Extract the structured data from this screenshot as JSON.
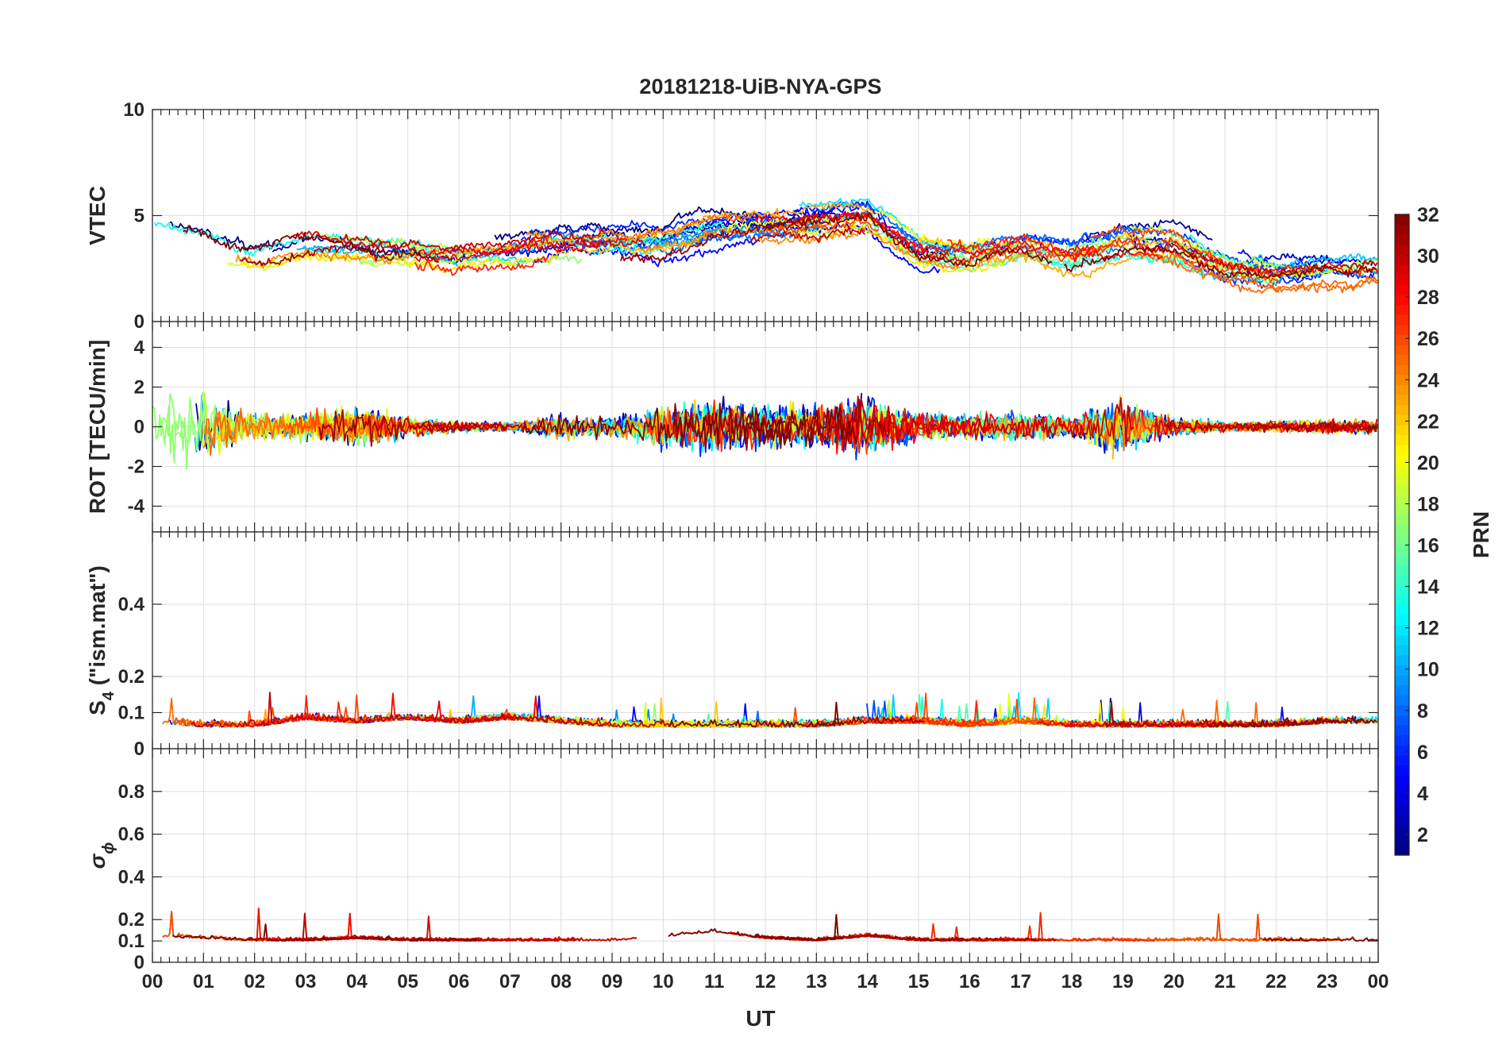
{
  "chart_data": {
    "type": "line",
    "title": "20181218-UiB-NYA-GPS",
    "xlabel": "UT",
    "x_ticks": [
      "00",
      "01",
      "02",
      "03",
      "04",
      "05",
      "06",
      "07",
      "08",
      "09",
      "10",
      "11",
      "12",
      "13",
      "14",
      "15",
      "16",
      "17",
      "18",
      "19",
      "20",
      "21",
      "22",
      "23",
      "00"
    ],
    "xlim": [
      0,
      24
    ],
    "colorbar": {
      "label": "PRN",
      "range": [
        1,
        32
      ],
      "ticks": [
        "2",
        "4",
        "6",
        "8",
        "10",
        "12",
        "14",
        "16",
        "18",
        "20",
        "22",
        "24",
        "26",
        "28",
        "30",
        "32"
      ],
      "colormap": "jet"
    },
    "panels": [
      {
        "id": "vtec",
        "ylabel": "VTEC",
        "ylim": [
          0,
          10
        ],
        "yticks": [
          "0",
          "5",
          "10"
        ],
        "ytick_values": [
          0,
          5,
          10
        ],
        "series_note": "GPS PRN 1-32",
        "activity_levels_by_hour": [
          4.0,
          3.6,
          3.0,
          3.6,
          3.4,
          3.2,
          3.0,
          3.2,
          3.6,
          3.8,
          3.8,
          4.4,
          4.6,
          4.8,
          5.0,
          3.2,
          3.0,
          3.6,
          3.2,
          3.8,
          3.6,
          2.6,
          2.2,
          2.4
        ]
      },
      {
        "id": "rot",
        "ylabel": "ROT [TECU/min]",
        "ylim": [
          -5.3,
          5.3
        ],
        "yticks": [
          "-4",
          "-2",
          "0",
          "2",
          "4"
        ],
        "ytick_values": [
          -4,
          -2,
          0,
          2,
          4
        ],
        "activity_levels_by_hour": [
          2.2,
          1.8,
          0.7,
          0.8,
          1.2,
          0.6,
          0.3,
          0.3,
          0.7,
          0.6,
          1.2,
          1.6,
          1.2,
          1.2,
          1.6,
          0.8,
          0.7,
          0.9,
          0.5,
          1.8,
          0.5,
          0.3,
          0.3,
          0.4
        ]
      },
      {
        "id": "s4",
        "ylabel": "S",
        "ylabel_sub": "4",
        "ylabel_rest": " (\"ism.mat\")",
        "ylim": [
          0,
          0.6
        ],
        "yticks": [
          "0",
          "0.1",
          "0.2",
          "0.4"
        ],
        "ytick_values": [
          0,
          0.1,
          0.2,
          0.4
        ],
        "activity_levels_by_hour": [
          0.07,
          0.06,
          0.06,
          0.08,
          0.07,
          0.08,
          0.07,
          0.08,
          0.07,
          0.06,
          0.06,
          0.06,
          0.06,
          0.06,
          0.07,
          0.07,
          0.06,
          0.07,
          0.06,
          0.06,
          0.06,
          0.06,
          0.06,
          0.07
        ]
      },
      {
        "id": "sigphi",
        "ylabel": "σ",
        "ylabel_sub": "ϕ",
        "ylim": [
          0,
          1
        ],
        "yticks": [
          "0",
          "0.1",
          "0.2",
          "0.4",
          "0.6",
          "0.8"
        ],
        "ytick_values": [
          0,
          0.1,
          0.2,
          0.4,
          0.6,
          0.8
        ],
        "activity_levels_by_hour": [
          0.12,
          0.11,
          0.1,
          0.1,
          0.11,
          0.1,
          0.1,
          0.1,
          0.1,
          0.1,
          0.12,
          0.14,
          0.11,
          0.1,
          0.12,
          0.1,
          0.1,
          0.1,
          0.1,
          0.1,
          0.1,
          0.1,
          0.1,
          0.1
        ]
      }
    ]
  }
}
